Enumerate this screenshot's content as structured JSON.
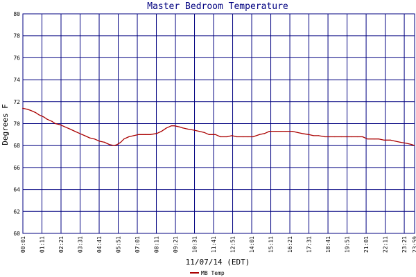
{
  "chart_data": {
    "type": "line",
    "title": "Master Bedroom Temperature",
    "xlabel": "11/07/14 (EDT)",
    "ylabel": "Degrees F",
    "ylim": [
      60,
      80
    ],
    "yticks": [
      "60",
      "62",
      "64",
      "66",
      "68",
      "70",
      "72",
      "74",
      "76",
      "78",
      "80"
    ],
    "xticks": [
      "00:01",
      "01:11",
      "02:21",
      "03:31",
      "04:41",
      "05:51",
      "07:01",
      "08:11",
      "09:21",
      "10:31",
      "11:41",
      "12:51",
      "14:01",
      "15:11",
      "16:21",
      "17:31",
      "18:41",
      "19:51",
      "21:01",
      "22:11",
      "23:21",
      "23:59"
    ],
    "xlim_hours": [
      0.0167,
      23.983
    ],
    "grid": true,
    "legend_position": "bottom-left",
    "colors": {
      "plot_bg": "#ffffff",
      "grid": "#000080",
      "series": "#aa0000",
      "title": "#000080"
    },
    "series": [
      {
        "name": "MB Temp",
        "x_hours": [
          0.0,
          0.3,
          0.5,
          0.8,
          1.0,
          1.3,
          1.5,
          1.8,
          2.0,
          2.3,
          2.6,
          2.9,
          3.2,
          3.5,
          3.8,
          4.1,
          4.4,
          4.7,
          5.0,
          5.3,
          5.6,
          5.8,
          6.0,
          6.2,
          6.5,
          6.8,
          7.1,
          7.5,
          7.8,
          8.2,
          8.5,
          8.8,
          9.1,
          9.3,
          9.6,
          9.8,
          10.1,
          10.5,
          10.8,
          11.1,
          11.4,
          11.8,
          12.1,
          12.5,
          12.8,
          13.1,
          13.5,
          13.8,
          14.1,
          14.5,
          14.8,
          15.1,
          15.5,
          15.8,
          16.1,
          16.5,
          16.8,
          17.1,
          17.5,
          17.8,
          18.1,
          18.5,
          18.8,
          19.1,
          19.5,
          19.8,
          20.1,
          20.5,
          20.8,
          21.1,
          21.5,
          21.8,
          22.1,
          22.5,
          22.8,
          23.1,
          23.5,
          23.8,
          23.98
        ],
        "values": [
          71.4,
          71.3,
          71.2,
          71.0,
          70.8,
          70.6,
          70.4,
          70.2,
          70.0,
          69.9,
          69.7,
          69.5,
          69.3,
          69.1,
          68.9,
          68.7,
          68.6,
          68.4,
          68.3,
          68.1,
          68.0,
          68.1,
          68.3,
          68.6,
          68.8,
          68.9,
          69.0,
          69.0,
          69.0,
          69.1,
          69.3,
          69.6,
          69.8,
          69.8,
          69.7,
          69.6,
          69.5,
          69.4,
          69.3,
          69.2,
          69.0,
          69.0,
          68.8,
          68.8,
          68.9,
          68.8,
          68.8,
          68.8,
          68.8,
          69.0,
          69.1,
          69.3,
          69.3,
          69.3,
          69.3,
          69.3,
          69.2,
          69.1,
          69.0,
          68.9,
          68.9,
          68.8,
          68.8,
          68.8,
          68.8,
          68.8,
          68.8,
          68.8,
          68.8,
          68.6,
          68.6,
          68.6,
          68.5,
          68.5,
          68.4,
          68.3,
          68.2,
          68.1,
          68.0
        ]
      }
    ]
  }
}
